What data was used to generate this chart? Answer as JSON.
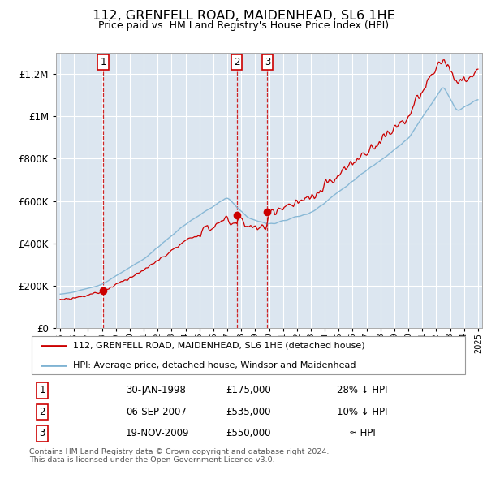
{
  "title": "112, GRENFELL ROAD, MAIDENHEAD, SL6 1HE",
  "subtitle": "Price paid vs. HM Land Registry's House Price Index (HPI)",
  "plot_bg_color": "#dce6f0",
  "sale_color": "#cc0000",
  "hpi_color": "#7fb3d3",
  "sale_label": "112, GRENFELL ROAD, MAIDENHEAD, SL6 1HE (detached house)",
  "hpi_label": "HPI: Average price, detached house, Windsor and Maidenhead",
  "transactions": [
    {
      "num": 1,
      "date": "30-JAN-1998",
      "price": 175000,
      "note": "28% ↓ HPI",
      "year": 1998.08
    },
    {
      "num": 2,
      "date": "06-SEP-2007",
      "price": 535000,
      "note": "10% ↓ HPI",
      "year": 2007.68
    },
    {
      "num": 3,
      "date": "19-NOV-2009",
      "price": 550000,
      "note": "≈ HPI",
      "year": 2009.88
    }
  ],
  "footer": "Contains HM Land Registry data © Crown copyright and database right 2024.\nThis data is licensed under the Open Government Licence v3.0.",
  "ylim": [
    0,
    1300000
  ],
  "yticks": [
    0,
    200000,
    400000,
    600000,
    800000,
    1000000,
    1200000
  ],
  "ytick_labels": [
    "£0",
    "£200K",
    "£400K",
    "£600K",
    "£800K",
    "£1M",
    "£1.2M"
  ]
}
